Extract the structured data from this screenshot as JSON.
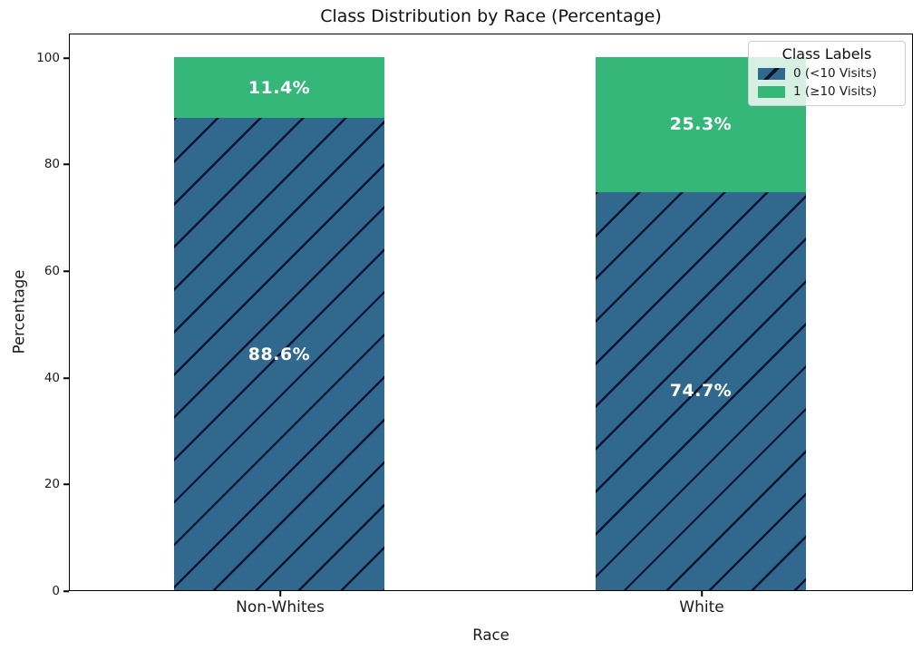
{
  "chart_data": {
    "type": "bar",
    "stacked": true,
    "orientation": "vertical",
    "title": "Class Distribution by Race (Percentage)",
    "xlabel": "Race",
    "ylabel": "Percentage",
    "categories": [
      "Non-Whites",
      "White"
    ],
    "series": [
      {
        "name": "0 (<10 Visits)",
        "color": "#31688e",
        "hatch": "/",
        "values": [
          88.6,
          74.7
        ],
        "bar_labels": [
          "88.6%",
          "74.7%"
        ]
      },
      {
        "name": "1 (≥10 Visits)",
        "color": "#35b779",
        "hatch": null,
        "values": [
          11.4,
          25.3
        ],
        "bar_labels": [
          "11.4%",
          "25.3%"
        ]
      }
    ],
    "yticks": [
      "0",
      "20",
      "40",
      "60",
      "80",
      "100"
    ],
    "ylim": [
      0,
      104.6
    ],
    "grid": false,
    "legend": {
      "title": "Class Labels",
      "position": "upper right"
    },
    "colors": {
      "class0_blue": "#31688e",
      "class1_green": "#35b779",
      "hatch_line": "#080c28",
      "bar_label_text": "#ffffff"
    }
  }
}
